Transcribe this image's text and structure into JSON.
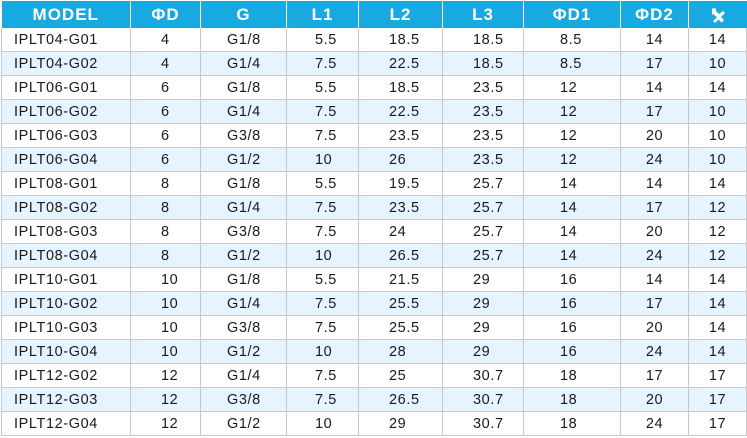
{
  "headers": [
    "MODEL",
    "ΦD",
    "G",
    "L1",
    "L2",
    "L3",
    "ΦD1",
    "ΦD2"
  ],
  "wrench_header_icon": "wrench-icon",
  "rows": [
    [
      "IPLT04-G01",
      "4",
      "G1/8",
      "5.5",
      "18.5",
      "18.5",
      "8.5",
      "14",
      "14"
    ],
    [
      "IPLT04-G02",
      "4",
      "G1/4",
      "7.5",
      "22.5",
      "18.5",
      "8.5",
      "17",
      "10"
    ],
    [
      "IPLT06-G01",
      "6",
      "G1/8",
      "5.5",
      "18.5",
      "23.5",
      "12",
      "14",
      "14"
    ],
    [
      "IPLT06-G02",
      "6",
      "G1/4",
      "7.5",
      "22.5",
      "23.5",
      "12",
      "17",
      "10"
    ],
    [
      "IPLT06-G03",
      "6",
      "G3/8",
      "7.5",
      "23.5",
      "23.5",
      "12",
      "20",
      "10"
    ],
    [
      "IPLT06-G04",
      "6",
      "G1/2",
      "10",
      "26",
      "23.5",
      "12",
      "24",
      "10"
    ],
    [
      "IPLT08-G01",
      "8",
      "G1/8",
      "5.5",
      "19.5",
      "25.7",
      "14",
      "14",
      "14"
    ],
    [
      "IPLT08-G02",
      "8",
      "G1/4",
      "7.5",
      "23.5",
      "25.7",
      "14",
      "17",
      "12"
    ],
    [
      "IPLT08-G03",
      "8",
      "G3/8",
      "7.5",
      "24",
      "25.7",
      "14",
      "20",
      "12"
    ],
    [
      "IPLT08-G04",
      "8",
      "G1/2",
      "10",
      "26.5",
      "25.7",
      "14",
      "24",
      "12"
    ],
    [
      "IPLT10-G01",
      "10",
      "G1/8",
      "5.5",
      "21.5",
      "29",
      "16",
      "14",
      "14"
    ],
    [
      "IPLT10-G02",
      "10",
      "G1/4",
      "7.5",
      "25.5",
      "29",
      "16",
      "17",
      "14"
    ],
    [
      "IPLT10-G03",
      "10",
      "G3/8",
      "7.5",
      "25.5",
      "29",
      "16",
      "20",
      "14"
    ],
    [
      "IPLT10-G04",
      "10",
      "G1/2",
      "10",
      "28",
      "29",
      "16",
      "24",
      "14"
    ],
    [
      "IPLT12-G02",
      "12",
      "G1/4",
      "7.5",
      "25",
      "30.7",
      "18",
      "17",
      "17"
    ],
    [
      "IPLT12-G03",
      "12",
      "G3/8",
      "7.5",
      "26.5",
      "30.7",
      "18",
      "20",
      "17"
    ],
    [
      "IPLT12-G04",
      "12",
      "G1/2",
      "10",
      "29",
      "30.7",
      "18",
      "24",
      "17"
    ]
  ],
  "colors": {
    "header_bg": "#17a9e0",
    "header_text": "#ffffff",
    "alt_row_bg": "#e6f4fd",
    "grid": "#c8c8c8"
  }
}
